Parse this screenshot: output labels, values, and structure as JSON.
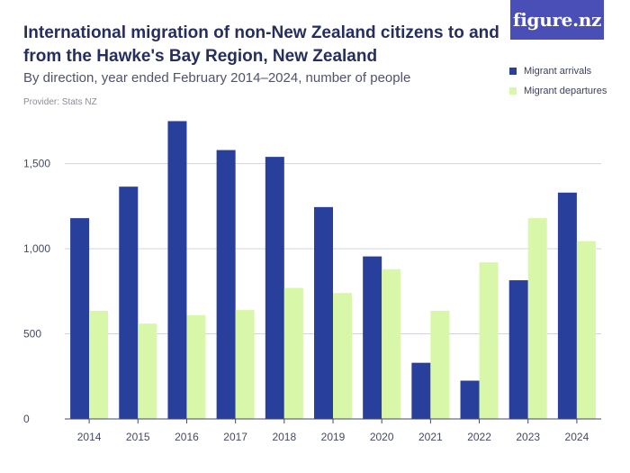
{
  "header": {
    "title": "International migration of non-New Zealand citizens to and from the Hawke's Bay Region, New Zealand",
    "subtitle": "By direction, year ended February 2014–2024, number of people",
    "provider": "Provider: Stats NZ",
    "logo": "figure.nz"
  },
  "colors": {
    "arrivals": "#28409c",
    "departures": "#d9f7a8",
    "logo_bg": "#4a4fb8"
  },
  "chart_data": {
    "type": "bar",
    "categories": [
      "2014",
      "2015",
      "2016",
      "2017",
      "2018",
      "2019",
      "2020",
      "2021",
      "2022",
      "2023",
      "2024"
    ],
    "series": [
      {
        "name": "Migrant arrivals",
        "values": [
          1180,
          1365,
          1750,
          1580,
          1540,
          1245,
          955,
          330,
          225,
          815,
          1330
        ]
      },
      {
        "name": "Migrant departures",
        "values": [
          635,
          560,
          610,
          640,
          770,
          740,
          880,
          635,
          920,
          1180,
          1045
        ]
      }
    ],
    "ylim": [
      0,
      1800
    ],
    "y_ticks": [
      0,
      500,
      1000,
      1500
    ],
    "y_tick_labels": [
      "0",
      "500",
      "1,000",
      "1,500"
    ],
    "grid": true,
    "legend_position": "top-right"
  }
}
